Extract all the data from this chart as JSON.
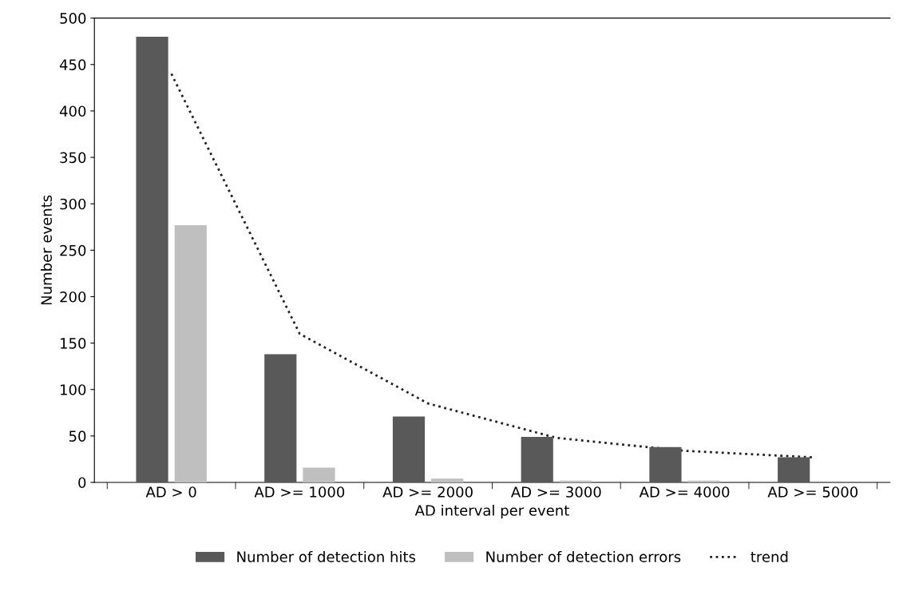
{
  "chart_data": {
    "type": "bar",
    "xlabel": "AD interval per event",
    "ylabel": "Number events",
    "categories": [
      "AD > 0",
      "AD >= 1000",
      "AD >= 2000",
      "AD >= 3000",
      "AD >= 4000",
      "AD >= 5000"
    ],
    "series": [
      {
        "name": "Number of detection hits",
        "color": "#595959",
        "values": [
          480,
          138,
          71,
          49,
          38,
          27
        ]
      },
      {
        "name": "Number of detection errors",
        "color": "#bfbfbf",
        "values": [
          277,
          16,
          4,
          2,
          2,
          null
        ]
      },
      {
        "name": "trend",
        "type": "line",
        "color": "#222222",
        "line_style": "dotted",
        "values": [
          440,
          160,
          85,
          48,
          34,
          27
        ]
      }
    ],
    "ylim": [
      0,
      500
    ],
    "yticks": [
      0,
      50,
      100,
      150,
      200,
      250,
      300,
      350,
      400,
      450,
      500
    ],
    "grid": false,
    "legend": "bottom"
  }
}
